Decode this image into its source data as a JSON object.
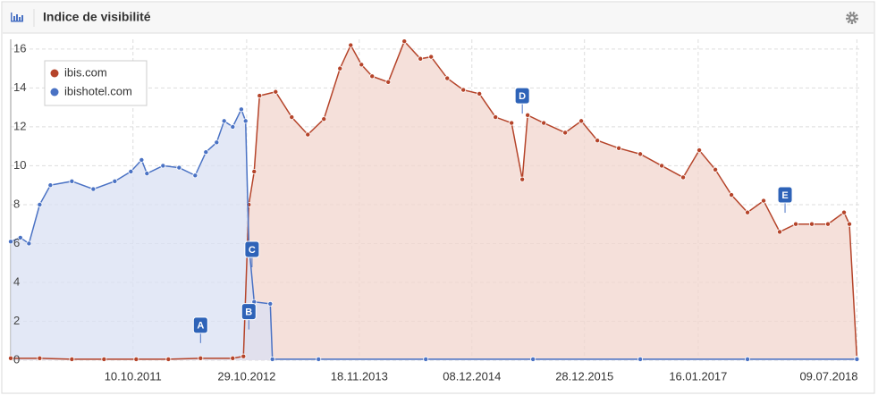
{
  "header": {
    "title": "Indice de visibilité"
  },
  "chart_data": {
    "type": "area",
    "xlim": [
      2010.63,
      2018.55
    ],
    "xticks": [
      {
        "value": 2011.77,
        "label": "10.10.2011"
      },
      {
        "value": 2012.83,
        "label": "29.10.2012"
      },
      {
        "value": 2013.88,
        "label": "18.11.2013"
      },
      {
        "value": 2014.93,
        "label": "08.12.2014"
      },
      {
        "value": 2015.98,
        "label": "28.12.2015"
      },
      {
        "value": 2017.04,
        "label": "16.01.2017"
      },
      {
        "value": 2018.52,
        "label": "09.07.2018"
      }
    ],
    "ylim": [
      0,
      16.5
    ],
    "yticks": [
      0,
      2,
      4,
      6,
      8,
      10,
      12,
      14,
      16
    ],
    "grid": true,
    "legend": "top-left",
    "series": [
      {
        "name": "ibis.com",
        "color": "#b5442a",
        "fill": "#f2d6ce",
        "x": [
          2010.63,
          2010.9,
          2011.2,
          2011.5,
          2011.8,
          2012.1,
          2012.4,
          2012.7,
          2012.8,
          2012.85,
          2012.9,
          2012.95,
          2013.1,
          2013.25,
          2013.4,
          2013.55,
          2013.7,
          2013.8,
          2013.9,
          2014.0,
          2014.15,
          2014.3,
          2014.45,
          2014.55,
          2014.7,
          2014.85,
          2015.0,
          2015.15,
          2015.3,
          2015.4,
          2015.45,
          2015.6,
          2015.8,
          2015.95,
          2016.1,
          2016.3,
          2016.5,
          2016.7,
          2016.9,
          2017.05,
          2017.2,
          2017.35,
          2017.5,
          2017.65,
          2017.8,
          2017.95,
          2018.1,
          2018.25,
          2018.4,
          2018.45,
          2018.52
        ],
        "values": [
          0.1,
          0.1,
          0.05,
          0.05,
          0.05,
          0.05,
          0.1,
          0.1,
          0.2,
          8.0,
          9.7,
          13.6,
          13.8,
          12.5,
          11.6,
          12.4,
          15.0,
          16.2,
          15.2,
          14.6,
          14.3,
          16.4,
          15.5,
          15.6,
          14.5,
          13.9,
          13.7,
          12.5,
          12.2,
          9.3,
          12.6,
          12.2,
          11.7,
          12.3,
          11.3,
          10.9,
          10.6,
          10.0,
          9.4,
          10.8,
          9.8,
          8.5,
          7.6,
          8.2,
          6.6,
          7.0,
          7.0,
          7.0,
          7.6,
          7.0,
          0.1
        ]
      },
      {
        "name": "ibishotel.com",
        "color": "#4a72c4",
        "fill": "#d9e0f3",
        "x": [
          2010.63,
          2010.72,
          2010.8,
          2010.9,
          2011.0,
          2011.2,
          2011.4,
          2011.6,
          2011.75,
          2011.85,
          2011.9,
          2012.05,
          2012.2,
          2012.35,
          2012.45,
          2012.55,
          2012.62,
          2012.7,
          2012.78,
          2012.82,
          2012.85,
          2012.9,
          2013.05,
          2013.07,
          2013.5,
          2014.5,
          2015.5,
          2016.5,
          2017.5,
          2018.52
        ],
        "values": [
          6.1,
          6.3,
          6.0,
          8.0,
          9.0,
          9.2,
          8.8,
          9.2,
          9.7,
          10.3,
          9.6,
          10.0,
          9.9,
          9.5,
          10.7,
          11.2,
          12.3,
          12.0,
          12.9,
          12.3,
          6.0,
          3.0,
          2.9,
          0.05,
          0.05,
          0.05,
          0.05,
          0.05,
          0.05,
          0.05
        ]
      }
    ],
    "annotations": [
      {
        "label": "A",
        "x": 2012.4,
        "y": 1.8
      },
      {
        "label": "B",
        "x": 2012.85,
        "y": 2.5
      },
      {
        "label": "C",
        "x": 2012.88,
        "y": 5.7
      },
      {
        "label": "D",
        "x": 2015.4,
        "y": 13.6
      },
      {
        "label": "E",
        "x": 2017.85,
        "y": 8.5
      }
    ]
  }
}
